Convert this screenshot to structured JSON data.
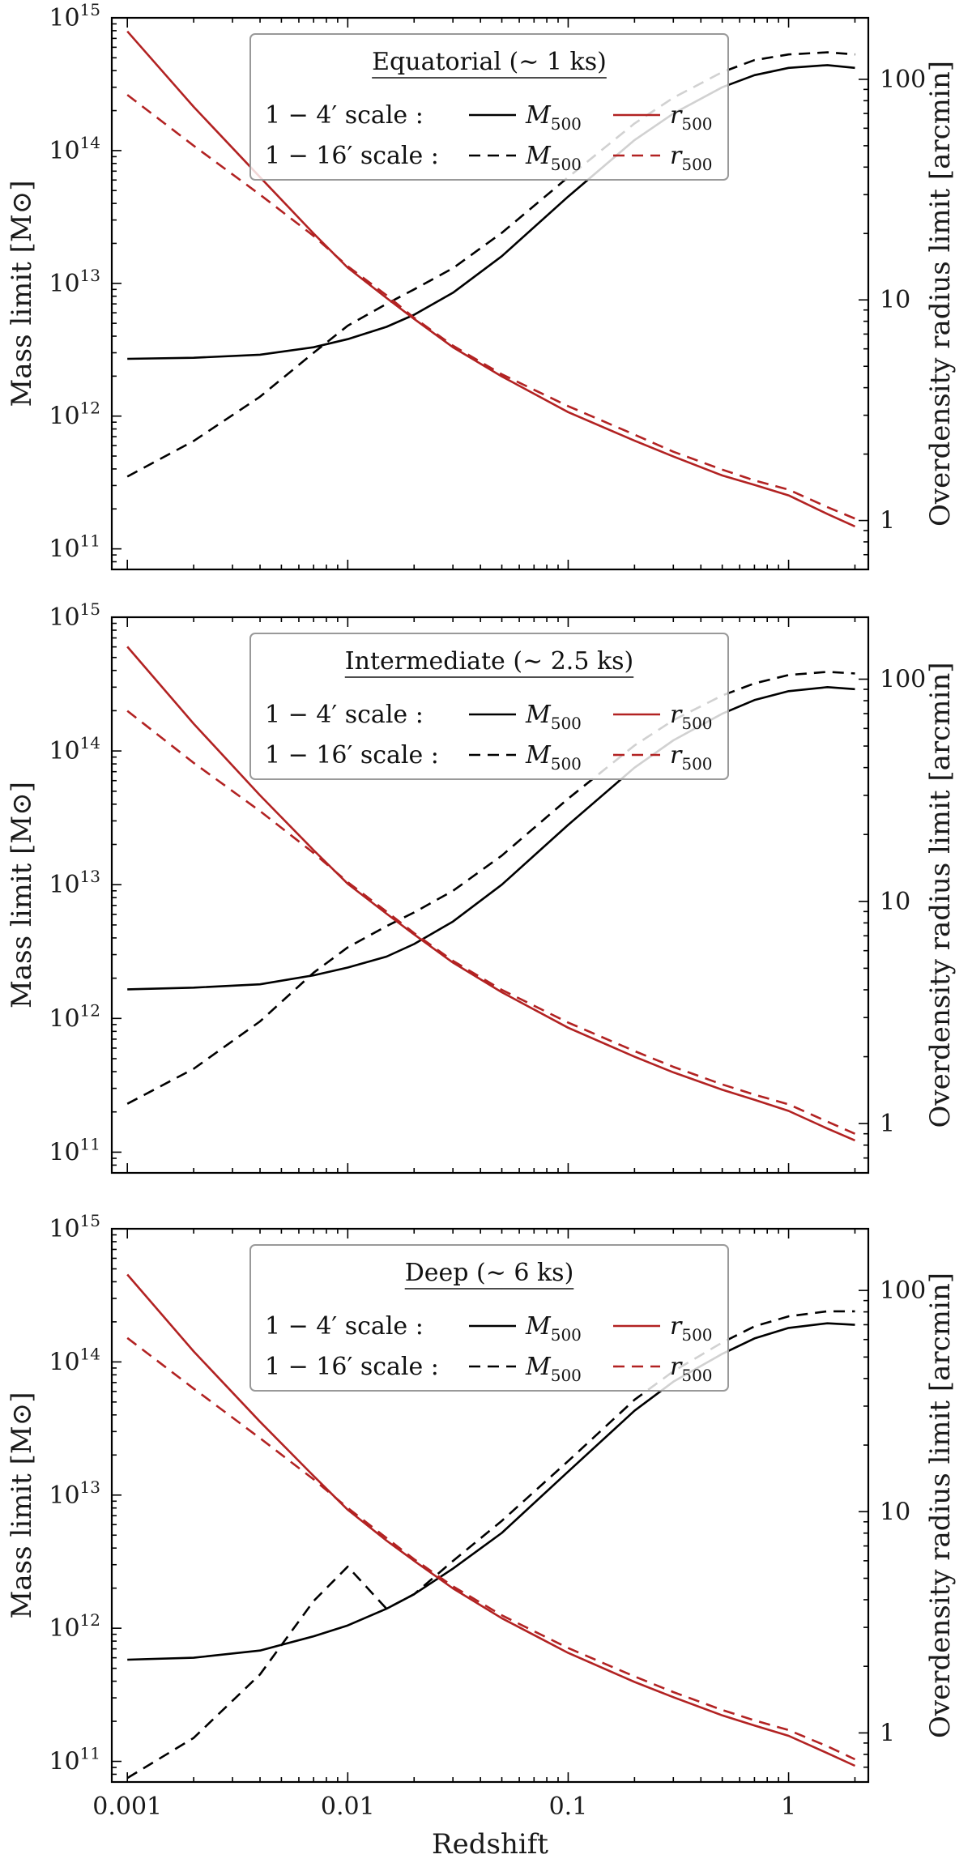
{
  "colors": {
    "mass": "#000000",
    "radius": "#b22222",
    "frame": "#000000",
    "legend_border": "#999999"
  },
  "chart_data": [
    {
      "type": "line",
      "title": "Equatorial (∼ 1 ks)",
      "xlabel": "",
      "ylabel": "Mass limit  [M⊙]",
      "y2label": "Overdensity radius limit  [arcmin]",
      "xscale": "log",
      "yscale": "log",
      "y2scale": "log",
      "xlim": [
        0.00085,
        2.3
      ],
      "ylim": [
        70000000000.0,
        1000000000000000.0
      ],
      "y2lim": [
        0.6,
        190
      ],
      "x_ticks": [
        0.001,
        0.01,
        0.1,
        1
      ],
      "x_tick_labels": [
        "",
        "",
        "",
        ""
      ],
      "y_ticks": [
        {
          "base": "10",
          "exp": "11",
          "value": 100000000000.0
        },
        {
          "base": "10",
          "exp": "12",
          "value": 1000000000000.0
        },
        {
          "base": "10",
          "exp": "13",
          "value": 10000000000000.0
        },
        {
          "base": "10",
          "exp": "14",
          "value": 100000000000000.0
        },
        {
          "base": "10",
          "exp": "15",
          "value": 1000000000000000.0
        }
      ],
      "y2_ticks": [
        {
          "label": "1",
          "value": 1
        },
        {
          "label": "10",
          "value": 10
        },
        {
          "label": "100",
          "value": 100
        }
      ],
      "legend": {
        "position": "top-center",
        "row1_label": "1 − 4′   scale :",
        "row2_label": "1 − 16′  scale :",
        "mass_label": "M",
        "mass_sub": "500",
        "radius_label": "r",
        "radius_sub": "500"
      },
      "series": [
        {
          "name": "M500 (1−4′)",
          "axis": "left",
          "style": "solid",
          "color": "#000000",
          "x": [
            0.001,
            0.002,
            0.004,
            0.007,
            0.01,
            0.015,
            0.02,
            0.03,
            0.05,
            0.1,
            0.2,
            0.3,
            0.5,
            0.7,
            1.0,
            1.5,
            2.0
          ],
          "y": [
            2700000000000.0,
            2750000000000.0,
            2900000000000.0,
            3300000000000.0,
            3800000000000.0,
            4700000000000.0,
            5800000000000.0,
            8500000000000.0,
            16000000000000.0,
            45000000000000.0,
            120000000000000.0,
            190000000000000.0,
            300000000000000.0,
            370000000000000.0,
            420000000000000.0,
            440000000000000.0,
            420000000000000.0
          ]
        },
        {
          "name": "M500 (1−16′)",
          "axis": "left",
          "style": "dashed",
          "color": "#000000",
          "x": [
            0.001,
            0.002,
            0.004,
            0.007,
            0.01,
            0.015,
            0.02,
            0.03,
            0.05,
            0.1,
            0.2,
            0.3,
            0.5,
            0.7,
            1.0,
            1.5,
            2.0
          ],
          "y": [
            350000000000.0,
            650000000000.0,
            1400000000000.0,
            3000000000000.0,
            4800000000000.0,
            7000000000000.0,
            9000000000000.0,
            13000000000000.0,
            24000000000000.0,
            63000000000000.0,
            160000000000000.0,
            250000000000000.0,
            390000000000000.0,
            480000000000000.0,
            530000000000000.0,
            550000000000000.0,
            530000000000000.0
          ]
        },
        {
          "name": "r500 (1−4′)",
          "axis": "right",
          "style": "solid",
          "color": "#b22222",
          "x": [
            0.001,
            0.002,
            0.004,
            0.007,
            0.01,
            0.015,
            0.02,
            0.03,
            0.05,
            0.1,
            0.2,
            0.3,
            0.5,
            0.7,
            1.0,
            1.5,
            2.0
          ],
          "y": [
            165,
            75,
            36,
            20,
            14,
            10.2,
            8.2,
            6.1,
            4.5,
            3.1,
            2.3,
            1.95,
            1.6,
            1.45,
            1.3,
            1.07,
            0.94
          ]
        },
        {
          "name": "r500 (1−16′)",
          "axis": "right",
          "style": "dashed",
          "color": "#b22222",
          "x": [
            0.001,
            0.002,
            0.004,
            0.007,
            0.01,
            0.015,
            0.02,
            0.03,
            0.05,
            0.1,
            0.2,
            0.3,
            0.5,
            0.7,
            1.0,
            1.5,
            2.0
          ],
          "y": [
            85,
            50,
            30,
            19.5,
            14.2,
            10.5,
            8.3,
            6.2,
            4.6,
            3.3,
            2.45,
            2.05,
            1.7,
            1.52,
            1.38,
            1.15,
            1.02
          ]
        }
      ]
    },
    {
      "type": "line",
      "title": "Intermediate (∼ 2.5 ks)",
      "xlabel": "",
      "ylabel": "Mass limit  [M⊙]",
      "y2label": "Overdensity radius limit  [arcmin]",
      "xscale": "log",
      "yscale": "log",
      "y2scale": "log",
      "xlim": [
        0.00085,
        2.3
      ],
      "ylim": [
        70000000000.0,
        1000000000000000.0
      ],
      "y2lim": [
        0.6,
        190
      ],
      "x_ticks": [
        0.001,
        0.01,
        0.1,
        1
      ],
      "x_tick_labels": [
        "",
        "",
        "",
        ""
      ],
      "y_ticks": [
        {
          "base": "10",
          "exp": "11",
          "value": 100000000000.0
        },
        {
          "base": "10",
          "exp": "12",
          "value": 1000000000000.0
        },
        {
          "base": "10",
          "exp": "13",
          "value": 10000000000000.0
        },
        {
          "base": "10",
          "exp": "14",
          "value": 100000000000000.0
        },
        {
          "base": "10",
          "exp": "15",
          "value": 1000000000000000.0
        }
      ],
      "y2_ticks": [
        {
          "label": "1",
          "value": 1
        },
        {
          "label": "10",
          "value": 10
        },
        {
          "label": "100",
          "value": 100
        }
      ],
      "legend": {
        "position": "top-center",
        "row1_label": "1 − 4′   scale :",
        "row2_label": "1 − 16′  scale :",
        "mass_label": "M",
        "mass_sub": "500",
        "radius_label": "r",
        "radius_sub": "500"
      },
      "series": [
        {
          "name": "M500 (1−4′)",
          "axis": "left",
          "style": "solid",
          "color": "#000000",
          "x": [
            0.001,
            0.002,
            0.004,
            0.007,
            0.01,
            0.015,
            0.02,
            0.03,
            0.05,
            0.1,
            0.2,
            0.3,
            0.5,
            0.7,
            1.0,
            1.5,
            2.0
          ],
          "y": [
            1650000000000.0,
            1700000000000.0,
            1800000000000.0,
            2100000000000.0,
            2400000000000.0,
            2900000000000.0,
            3600000000000.0,
            5300000000000.0,
            10000000000000.0,
            28000000000000.0,
            75000000000000.0,
            120000000000000.0,
            190000000000000.0,
            240000000000000.0,
            280000000000000.0,
            300000000000000.0,
            290000000000000.0
          ]
        },
        {
          "name": "M500 (1−16′)",
          "axis": "left",
          "style": "dashed",
          "color": "#000000",
          "x": [
            0.001,
            0.002,
            0.004,
            0.007,
            0.01,
            0.015,
            0.02,
            0.03,
            0.05,
            0.1,
            0.2,
            0.3,
            0.5,
            0.7,
            1.0,
            1.5,
            2.0
          ],
          "y": [
            230000000000.0,
            420000000000.0,
            950000000000.0,
            2200000000000.0,
            3400000000000.0,
            4900000000000.0,
            6200000000000.0,
            9000000000000.0,
            16500000000000.0,
            44000000000000.0,
            110000000000000.0,
            170000000000000.0,
            260000000000000.0,
            320000000000000.0,
            370000000000000.0,
            390000000000000.0,
            380000000000000.0
          ]
        },
        {
          "name": "r500 (1−4′)",
          "axis": "right",
          "style": "solid",
          "color": "#b22222",
          "x": [
            0.001,
            0.002,
            0.004,
            0.007,
            0.01,
            0.015,
            0.02,
            0.03,
            0.05,
            0.1,
            0.2,
            0.3,
            0.5,
            0.7,
            1.0,
            1.5,
            2.0
          ],
          "y": [
            140,
            63,
            30,
            17,
            12,
            8.8,
            7.1,
            5.3,
            3.9,
            2.7,
            2.0,
            1.7,
            1.42,
            1.28,
            1.14,
            0.95,
            0.84
          ]
        },
        {
          "name": "r500 (1−16′)",
          "axis": "right",
          "style": "dashed",
          "color": "#b22222",
          "x": [
            0.001,
            0.002,
            0.004,
            0.007,
            0.01,
            0.015,
            0.02,
            0.03,
            0.05,
            0.1,
            0.2,
            0.3,
            0.5,
            0.7,
            1.0,
            1.5,
            2.0
          ],
          "y": [
            72,
            42,
            25.5,
            16.5,
            12.2,
            9.0,
            7.2,
            5.4,
            4.0,
            2.85,
            2.12,
            1.8,
            1.5,
            1.35,
            1.22,
            1.02,
            0.9
          ]
        }
      ]
    },
    {
      "type": "line",
      "title": "Deep (∼ 6 ks)",
      "xlabel": "Redshift",
      "ylabel": "Mass limit  [M⊙]",
      "y2label": "Overdensity radius limit  [arcmin]",
      "xscale": "log",
      "yscale": "log",
      "y2scale": "log",
      "xlim": [
        0.00085,
        2.3
      ],
      "ylim": [
        70000000000.0,
        1000000000000000.0
      ],
      "y2lim": [
        0.6,
        190
      ],
      "x_ticks": [
        0.001,
        0.01,
        0.1,
        1
      ],
      "x_tick_labels": [
        "0.001",
        "0.01",
        "0.1",
        "1"
      ],
      "y_ticks": [
        {
          "base": "10",
          "exp": "11",
          "value": 100000000000.0
        },
        {
          "base": "10",
          "exp": "12",
          "value": 1000000000000.0
        },
        {
          "base": "10",
          "exp": "13",
          "value": 10000000000000.0
        },
        {
          "base": "10",
          "exp": "14",
          "value": 100000000000000.0
        },
        {
          "base": "10",
          "exp": "15",
          "value": 1000000000000000.0
        }
      ],
      "y2_ticks": [
        {
          "label": "1",
          "value": 1
        },
        {
          "label": "10",
          "value": 10
        },
        {
          "label": "100",
          "value": 100
        }
      ],
      "legend": {
        "position": "top-center",
        "row1_label": "1 − 4′   scale :",
        "row2_label": "1 − 16′  scale :",
        "mass_label": "M",
        "mass_sub": "500",
        "radius_label": "r",
        "radius_sub": "500"
      },
      "series": [
        {
          "name": "M500 (1−4′)",
          "axis": "left",
          "style": "solid",
          "color": "#000000",
          "x": [
            0.001,
            0.002,
            0.004,
            0.007,
            0.01,
            0.015,
            0.02,
            0.03,
            0.05,
            0.1,
            0.2,
            0.3,
            0.5,
            0.7,
            1.0,
            1.5,
            2.0
          ],
          "y": [
            580000000000.0,
            600000000000.0,
            680000000000.0,
            870000000000.0,
            1050000000000.0,
            1400000000000.0,
            1800000000000.0,
            2800000000000.0,
            5200000000000.0,
            15000000000000.0,
            43000000000000.0,
            71000000000000.0,
            115000000000000.0,
            150000000000000.0,
            180000000000000.0,
            195000000000000.0,
            190000000000000.0
          ]
        },
        {
          "name": "M500 (1−16′)",
          "axis": "left",
          "style": "dashed",
          "color": "#000000",
          "x": [
            0.001,
            0.002,
            0.004,
            0.007,
            0.01,
            0.015,
            0.02,
            0.03,
            0.05,
            0.1,
            0.2,
            0.3,
            0.5,
            0.7,
            1.0,
            1.5,
            2.0
          ],
          "y": [
            75000000000.0,
            150000000000.0,
            450000000000.0,
            1600000000000.0,
            2900000000000.0,
            1400000000000.0,
            1800000000000.0,
            3200000000000.0,
            6400000000000.0,
            18000000000000.0,
            52000000000000.0,
            85000000000000.0,
            140000000000000.0,
            185000000000000.0,
            220000000000000.0,
            240000000000000.0,
            240000000000000.0
          ]
        },
        {
          "name": "r500 (1−4′)",
          "axis": "right",
          "style": "solid",
          "color": "#b22222",
          "x": [
            0.001,
            0.002,
            0.004,
            0.007,
            0.01,
            0.015,
            0.02,
            0.03,
            0.05,
            0.1,
            0.2,
            0.3,
            0.5,
            0.7,
            1.0,
            1.5,
            2.0
          ],
          "y": [
            118,
            53,
            25.5,
            14.5,
            10.2,
            7.4,
            6.0,
            4.5,
            3.3,
            2.3,
            1.7,
            1.45,
            1.2,
            1.08,
            0.97,
            0.81,
            0.71
          ]
        },
        {
          "name": "r500 (1−16′)",
          "axis": "right",
          "style": "dashed",
          "color": "#b22222",
          "x": [
            0.001,
            0.002,
            0.004,
            0.007,
            0.01,
            0.015,
            0.02,
            0.03,
            0.05,
            0.1,
            0.2,
            0.3,
            0.5,
            0.7,
            1.0,
            1.5,
            2.0
          ],
          "y": [
            61,
            36,
            21.5,
            14,
            10.4,
            7.6,
            6.1,
            4.6,
            3.4,
            2.42,
            1.8,
            1.53,
            1.27,
            1.14,
            1.03,
            0.87,
            0.76
          ]
        }
      ]
    }
  ]
}
